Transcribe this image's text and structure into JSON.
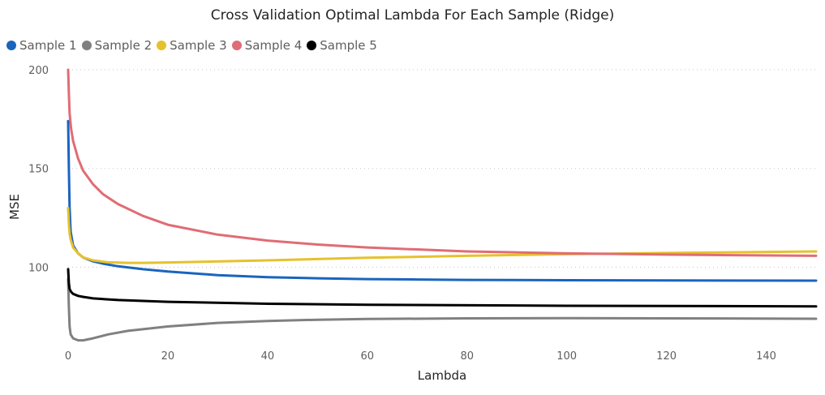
{
  "chart_data": {
    "type": "line",
    "title": "Cross Validation Optimal Lambda For Each Sample (Ridge)",
    "xlabel": "Lambda",
    "ylabel": "MSE",
    "xlim": [
      0,
      150
    ],
    "ylim": [
      62,
      200
    ],
    "x_ticks": [
      0,
      20,
      40,
      60,
      80,
      100,
      120,
      140
    ],
    "y_ticks": [
      100,
      150,
      200
    ],
    "grid": "horizontal dotted",
    "legend_position": "top-left",
    "series": [
      {
        "name": "Sample 1",
        "color": "#1a64be",
        "x": [
          0,
          0.15,
          0.3,
          0.5,
          1,
          2,
          3,
          5,
          7,
          10,
          15,
          20,
          30,
          40,
          50,
          60,
          70,
          80,
          100,
          120,
          150
        ],
        "values": [
          174,
          150,
          130,
          118,
          111,
          107,
          105,
          103,
          101.8,
          100.5,
          99,
          97.8,
          96,
          95,
          94.4,
          94,
          93.8,
          93.6,
          93.4,
          93.3,
          93.2
        ]
      },
      {
        "name": "Sample 2",
        "color": "#808080",
        "x": [
          0,
          0.15,
          0.3,
          0.5,
          1,
          2,
          3,
          5,
          8,
          12,
          20,
          30,
          40,
          50,
          60,
          80,
          100,
          120,
          150
        ],
        "values": [
          94,
          80,
          70,
          66,
          64,
          63,
          63,
          64,
          66,
          67.8,
          70,
          71.8,
          72.8,
          73.4,
          73.8,
          74.1,
          74.2,
          74.1,
          73.9
        ]
      },
      {
        "name": "Sample 3",
        "color": "#e6c12d",
        "x": [
          0,
          0.15,
          0.3,
          0.5,
          1,
          2,
          3,
          5,
          8,
          12,
          15,
          20,
          40,
          60,
          80,
          100,
          120,
          150
        ],
        "values": [
          130,
          122,
          117,
          114,
          110,
          107,
          105,
          103.5,
          102.5,
          102.2,
          102.2,
          102.4,
          103.5,
          104.8,
          105.8,
          106.6,
          107.2,
          108
        ]
      },
      {
        "name": "Sample 4",
        "color": "#e06c75",
        "x": [
          0,
          0.15,
          0.3,
          0.6,
          1,
          2,
          3,
          5,
          7,
          10,
          15,
          20,
          30,
          40,
          50,
          60,
          80,
          100,
          120,
          150
        ],
        "values": [
          200,
          188,
          178,
          170,
          164,
          155,
          149,
          142,
          137,
          132,
          126,
          121.5,
          116.5,
          113.5,
          111.5,
          110,
          108,
          107,
          106.4,
          105.8
        ]
      },
      {
        "name": "Sample 5",
        "color": "#000000",
        "x": [
          0,
          0.15,
          0.3,
          0.6,
          1,
          2,
          3,
          5,
          10,
          20,
          40,
          60,
          100,
          150
        ],
        "values": [
          99,
          92,
          89,
          87.5,
          86.5,
          85.5,
          85,
          84.2,
          83.4,
          82.5,
          81.5,
          81,
          80.5,
          80.2
        ]
      }
    ]
  }
}
